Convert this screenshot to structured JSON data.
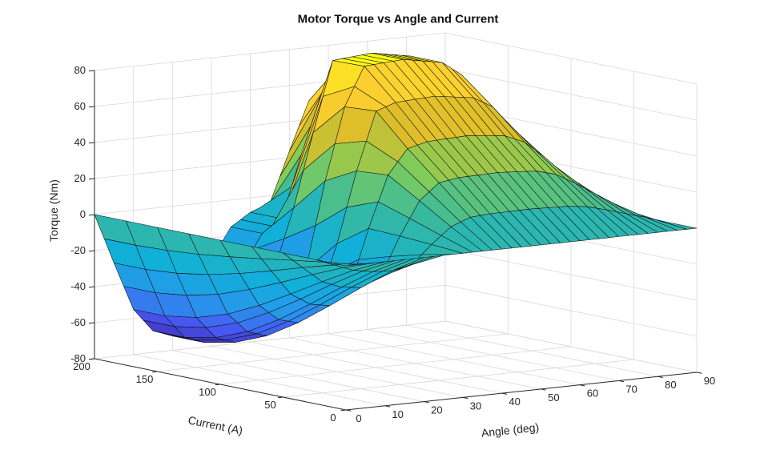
{
  "title": "Motor Torque vs Angle and Current",
  "axes": {
    "x_label": "Angle (deg)",
    "y_label": "Current (A)",
    "z_label": "Torque (Nm)"
  },
  "colors": {
    "background": "#ffffff",
    "axis_line": "#262626",
    "grid_line": "#d9d9d9",
    "tick_text": "#262626",
    "mesh_edge": "#101010",
    "parula": [
      "#3e26a8",
      "#4756f2",
      "#2797eb",
      "#10b0d8",
      "#38b99e",
      "#81cc59",
      "#dcbd29",
      "#fccf30",
      "#f9fb15"
    ]
  },
  "chart_data": {
    "type": "surface",
    "title": "Motor Torque vs Angle and Current",
    "xlabel": "Angle (deg)",
    "ylabel": "Current (A)",
    "zlabel": "Torque (Nm)",
    "xlim": [
      0,
      90
    ],
    "ylim": [
      0,
      200
    ],
    "zlim": [
      -80,
      80
    ],
    "x_ticks": [
      0,
      10,
      20,
      30,
      40,
      50,
      60,
      70,
      80,
      90
    ],
    "y_ticks": [
      0,
      50,
      100,
      150,
      200
    ],
    "z_ticks": [
      -80,
      -60,
      -40,
      -20,
      0,
      20,
      40,
      60,
      80
    ],
    "grid": true,
    "legend": "none",
    "colormap": "parula",
    "color_range": [
      -72,
      84
    ],
    "angle_deg": [
      0,
      5,
      10,
      15,
      20,
      25,
      30,
      35,
      40,
      45,
      50,
      55,
      60,
      65,
      70,
      75,
      80,
      85,
      90
    ],
    "current_A": [
      0,
      25,
      50,
      75,
      100,
      125,
      150,
      175,
      200
    ],
    "torque_Nm": [
      [
        0,
        0,
        0,
        0,
        0,
        0,
        0,
        0,
        0,
        0,
        0,
        0,
        0,
        0,
        0,
        0,
        0,
        0,
        0
      ],
      [
        0,
        -4.2,
        -8.3,
        -10.2,
        -10.8,
        -8.7,
        1.3,
        10.0,
        14.1,
        14.9,
        15.0,
        15.1,
        14.8,
        14.4,
        13.0,
        10.1,
        6.8,
        3.6,
        0
      ],
      [
        0,
        -9.2,
        -18.2,
        -22.4,
        -23.8,
        -19.1,
        2.4,
        20.9,
        29.7,
        31.4,
        31.6,
        31.9,
        31.2,
        30.4,
        27.4,
        21.3,
        14.4,
        7.6,
        0
      ],
      [
        0,
        -14.6,
        -28.6,
        -35.4,
        -37.4,
        -30.2,
        3.1,
        31.6,
        45.1,
        47.8,
        48.3,
        48.7,
        47.6,
        46.4,
        41.8,
        32.5,
        22.0,
        11.6,
        0
      ],
      [
        0,
        -19.6,
        -38.5,
        -47.6,
        -50.4,
        -40.6,
        -8.8,
        30.3,
        62.4,
        66.0,
        66.6,
        67.2,
        65.6,
        64.0,
        57.6,
        44.8,
        30.4,
        16.0,
        0
      ],
      [
        0,
        -23.8,
        -46.8,
        -57.8,
        -61.2,
        -49.3,
        -27.2,
        21.3,
        61.2,
        82.6,
        83.3,
        84.0,
        82.0,
        80.0,
        72.0,
        56.0,
        38.0,
        20.0,
        0
      ],
      [
        0,
        -26.6,
        -52.3,
        -64.6,
        -68.4,
        -55.1,
        -30.4,
        2.8,
        43.4,
        82.2,
        83.1,
        84.0,
        82.0,
        80.0,
        72.0,
        56.0,
        38.0,
        20.0,
        0
      ],
      [
        0,
        -28.0,
        -55.0,
        -68.0,
        -72.0,
        -58.0,
        -32.0,
        -15.0,
        -8.0,
        26.3,
        57.8,
        73.9,
        72.2,
        70.4,
        63.4,
        49.3,
        33.4,
        17.6,
        0
      ],
      [
        0,
        -28.0,
        -55.0,
        -68.0,
        -72.0,
        -58.0,
        -32.0,
        -15.0,
        -8.0,
        -4.0,
        23.5,
        50.4,
        61.5,
        60.0,
        54.0,
        42.0,
        28.5,
        15.0,
        0
      ]
    ]
  }
}
